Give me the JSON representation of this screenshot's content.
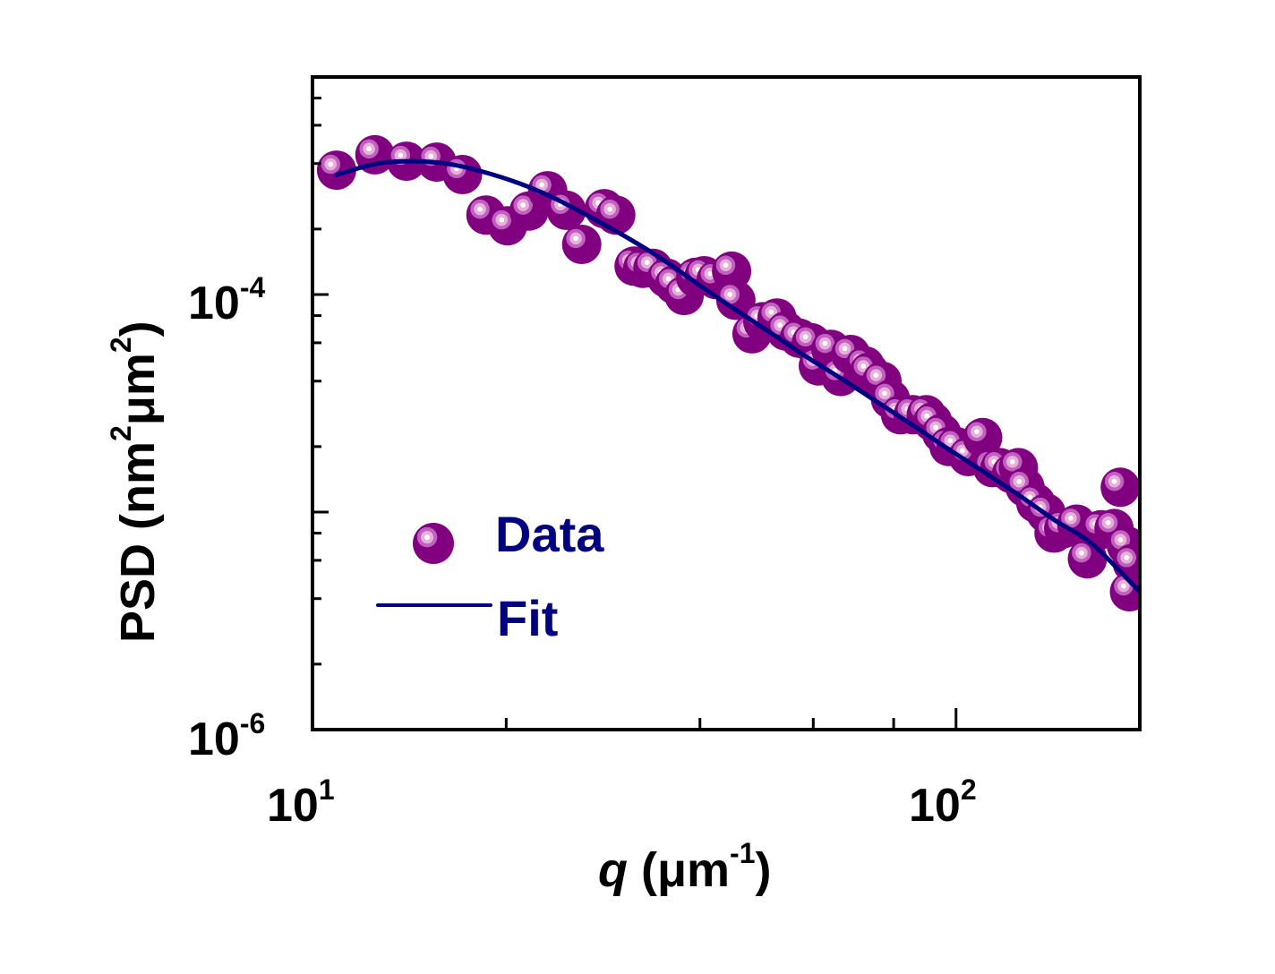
{
  "chart_data": {
    "type": "scatter",
    "title": "",
    "xscale": "log",
    "yscale": "log",
    "xlim": [
      10,
      193
    ],
    "ylim": [
      1e-06,
      0.001
    ],
    "xlabel": {
      "italic_part": "q",
      "rest": " (μm",
      "sup": "-1",
      "close": ")"
    },
    "ylabel": {
      "part1": "PSD (nm",
      "sup1": "2",
      "part2": "μm",
      "sup2": "2",
      "close": ")"
    },
    "x_major_ticks": [
      {
        "value": 10,
        "base": "10",
        "exp": "1"
      },
      {
        "value": 100,
        "base": "10",
        "exp": "2"
      }
    ],
    "x_minor_ticks": [
      20,
      40,
      60,
      80
    ],
    "y_major_ticks": [
      {
        "value": 0.0001,
        "base": "10",
        "exp": "-4",
        "labeled": true
      },
      {
        "value": 1e-06,
        "base": "10",
        "exp": "-6",
        "labeled": true
      },
      {
        "value": 1e-05,
        "labeled": false
      }
    ],
    "y_minor_ticks": [
      0.0008,
      0.0006,
      0.0004,
      0.0002,
      8e-05,
      6e-05,
      4e-05,
      2e-05,
      8e-06,
      6e-06,
      4e-06,
      2e-06
    ],
    "grid": false,
    "legend": {
      "position": "bottom-left",
      "entries": [
        {
          "label": "Data",
          "marker": "sphere"
        },
        {
          "label": "Fit",
          "marker": "line"
        }
      ]
    },
    "colors": {
      "marker": "#800080",
      "marker_ring": "#c060c0",
      "marker_inner": "#e0a0d0",
      "marker_highlight": "#ffffff",
      "fit_line": "#000080",
      "legend_text": "#000080",
      "axis": "#000000"
    },
    "series": [
      {
        "name": "Data",
        "type": "scatter",
        "x": [
          10.9,
          12.5,
          14.0,
          15.6,
          17.1,
          18.6,
          20.1,
          21.7,
          23.2,
          24.8,
          26.2,
          28.4,
          29.6,
          31.6,
          32.6,
          33.8,
          35.5,
          36.5,
          37.8,
          39.4,
          40.6,
          42.4,
          44.8,
          45.5,
          48.2,
          50.1,
          52.7,
          54.4,
          57.1,
          59.6,
          61.1,
          63.9,
          66.2,
          68.6,
          72.2,
          73.3,
          76.7,
          79.1,
          82.0,
          85.8,
          89.9,
          92.0,
          95.0,
          97.5,
          100,
          104.5,
          110,
          114,
          117,
          122,
          125,
          128,
          133,
          138,
          142,
          147,
          154,
          160,
          168,
          176,
          180,
          184,
          188,
          186
        ],
        "y": [
          0.000373,
          0.000439,
          0.00041,
          0.000406,
          0.000356,
          0.000232,
          0.000207,
          0.000242,
          0.0003,
          0.000244,
          0.00017,
          0.000248,
          0.000232,
          0.000135,
          0.000132,
          0.000132,
          0.000119,
          0.000111,
          9.9e-05,
          0.00012,
          0.000122,
          0.000117,
          0.000128,
          9.4e-05,
          6.6e-05,
          7.5e-05,
          7.8e-05,
          6.8e-05,
          6.3e-05,
          6e-05,
          4.7e-05,
          5.6e-05,
          4.2e-05,
          5.3e-05,
          4.7e-05,
          4.4e-05,
          4e-05,
          3.3e-05,
          2.8e-05,
          2.8e-05,
          2.8e-05,
          2.6e-05,
          2.3e-05,
          2e-05,
          2e-05,
          1.8e-05,
          2.2e-05,
          1.6e-05,
          1.6e-05,
          1.5e-05,
          1.6e-05,
          1.3e-05,
          1.1e-05,
          9.9e-06,
          8e-06,
          8.4e-06,
          8.8e-06,
          6.1e-06,
          8.3e-06,
          8.4e-06,
          1.3e-05,
          7e-06,
          5.8e-06,
          4.3e-06
        ]
      },
      {
        "name": "Fit",
        "type": "line",
        "x": [
          10.9,
          12.55,
          14.27,
          16.23,
          18.45,
          20.97,
          23.83,
          27.1,
          30.8,
          35.0,
          39.8,
          45.2,
          51.4,
          58.4,
          66.4,
          75.5,
          85.8,
          97.5,
          110.8,
          126,
          143,
          163,
          193
        ],
        "y": [
          0.000355,
          0.000399,
          0.00041,
          0.000399,
          0.000366,
          0.000324,
          0.000276,
          0.000226,
          0.000183,
          0.000145,
          0.000111,
          8.6e-05,
          6.7e-05,
          5.2e-05,
          4.1e-05,
          3.2e-05,
          2.5e-05,
          1.94e-05,
          1.52e-05,
          1.18e-05,
          9.1e-06,
          7.1e-06,
          4.3e-06
        ]
      }
    ]
  }
}
